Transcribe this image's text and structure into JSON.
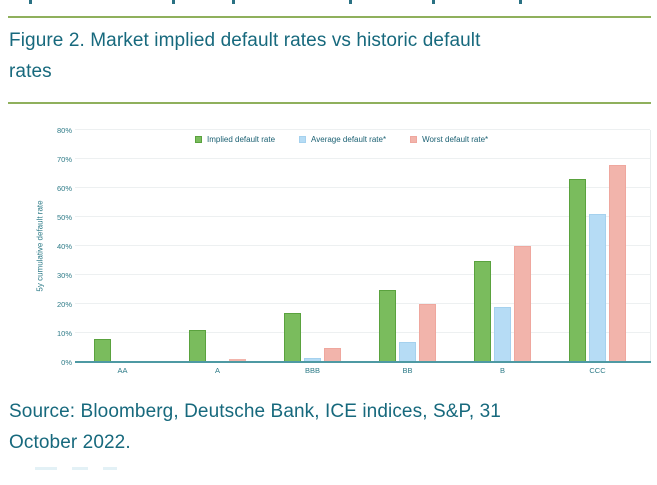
{
  "document": {
    "figure_title_line1": "Figure 2. Market implied default rates vs historic default",
    "figure_title_line2": "rates",
    "source_line1": "Source: Bloomberg, Deutsche Bank, ICE indices, S&P, 31",
    "source_line2": "October 2022."
  },
  "colors": {
    "title_text": "#17697d",
    "rule_green": "#8fb05c",
    "axis_line": "#4e99a3",
    "tick_text": "#2e7b88",
    "legend_text": "#1c6173",
    "grid_line": "#edf0f1"
  },
  "chart_data": {
    "type": "bar",
    "title": "",
    "xlabel": "",
    "ylabel": "5y cumulative default rate",
    "ylim": [
      0,
      80
    ],
    "ytick_step": 10,
    "ytick_suffix": "%",
    "grid": true,
    "legend_position": "top",
    "categories": [
      "AA",
      "A",
      "BBB",
      "BB",
      "B",
      "CCC"
    ],
    "series": [
      {
        "name": "Implied default rate",
        "color": "#7abc5d",
        "border": "#5aa23e",
        "values": [
          8,
          11,
          17,
          25,
          35,
          63
        ]
      },
      {
        "name": "Average default rate*",
        "color": "#b6dcf5",
        "border": "#a5d1ee",
        "values": [
          0.1,
          0.1,
          1.5,
          7,
          19,
          51
        ]
      },
      {
        "name": "Worst default rate*",
        "color": "#f2b4ab",
        "border": "#efa79e",
        "values": [
          0.5,
          1,
          5,
          20,
          40,
          68
        ]
      }
    ]
  }
}
